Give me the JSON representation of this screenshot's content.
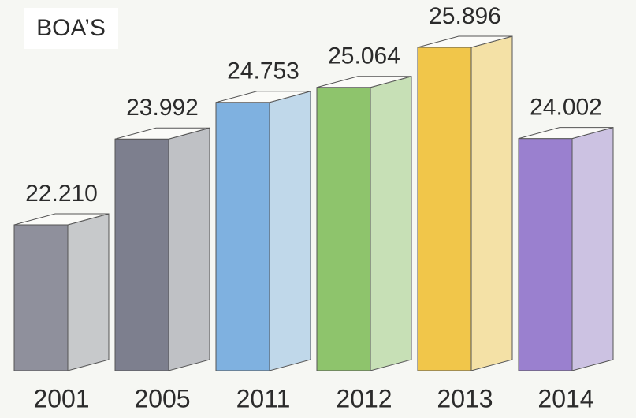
{
  "chart_data": {
    "type": "bar",
    "title": "BOA’S",
    "categories": [
      "2001",
      "2005",
      "2011",
      "2012",
      "2013",
      "2014"
    ],
    "values": [
      22210,
      23992,
      24753,
      25064,
      25896,
      24002
    ],
    "value_labels": [
      "22.210",
      "23.992",
      "24.753",
      "25.064",
      "25.896",
      "24.002"
    ],
    "colors": [
      "#8f909c",
      "#7d7f8e",
      "#7fb1e0",
      "#8ec46c",
      "#f1c64a",
      "#9a80cf"
    ]
  }
}
